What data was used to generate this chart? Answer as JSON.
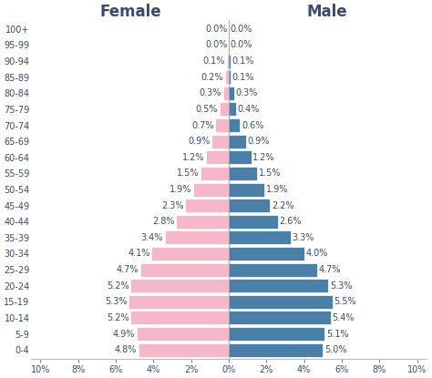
{
  "age_groups": [
    "0-4",
    "5-9",
    "10-14",
    "15-19",
    "20-24",
    "25-29",
    "30-34",
    "35-39",
    "40-44",
    "45-49",
    "50-54",
    "55-59",
    "60-64",
    "65-69",
    "70-74",
    "75-79",
    "80-84",
    "85-89",
    "90-94",
    "95-99",
    "100+"
  ],
  "female": [
    4.8,
    4.9,
    5.2,
    5.3,
    5.2,
    4.7,
    4.1,
    3.4,
    2.8,
    2.3,
    1.9,
    1.5,
    1.2,
    0.9,
    0.7,
    0.5,
    0.3,
    0.2,
    0.1,
    0.0,
    0.0
  ],
  "male": [
    5.0,
    5.1,
    5.4,
    5.5,
    5.3,
    4.7,
    4.0,
    3.3,
    2.6,
    2.2,
    1.9,
    1.5,
    1.2,
    0.9,
    0.6,
    0.4,
    0.3,
    0.1,
    0.1,
    0.0,
    0.0
  ],
  "female_color": "#f4b8c8",
  "male_color": "#4a7fa8",
  "bar_edge_color": "#ffffff",
  "female_label": "Female",
  "male_label": "Male",
  "xlim": 10.5,
  "label_fontsize": 7.0,
  "header_fontsize": 12,
  "tick_color": "#3a4a6b",
  "bar_height": 0.85,
  "bg_color": "#ffffff"
}
